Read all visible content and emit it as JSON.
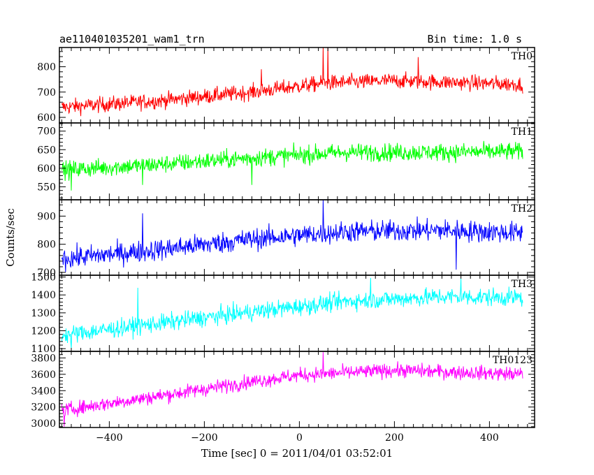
{
  "header": {
    "title": "ae110401035201_wam1_trn",
    "bin_time": "Bin time: 1.0 s"
  },
  "chart_data": {
    "type": "line",
    "title": "ae110401035201_wam1_trn",
    "subtitle": "Bin time: 1.0 s",
    "xlabel": "Time [sec] 0 = 2011/04/01 03:52:01",
    "ylabel": "Counts/sec",
    "xlim": [
      -505,
      495
    ],
    "x_range_data": [
      -500,
      470
    ],
    "x_ticks": [
      -400,
      -200,
      0,
      200,
      400
    ],
    "x_tick_labels": [
      "−400",
      "−200",
      "0",
      "200",
      "400"
    ],
    "grid": false,
    "panels": [
      {
        "name": "TH0",
        "color": "#ff0000",
        "ylim": [
          578,
          876
        ],
        "y_ticks": [
          600,
          700,
          800
        ],
        "trend": [
          [
            -500,
            640
          ],
          [
            -300,
            665
          ],
          [
            -100,
            700
          ],
          [
            50,
            735
          ],
          [
            200,
            745
          ],
          [
            470,
            730
          ]
        ],
        "noise": 28,
        "spikes": [
          [
            -80,
            790
          ],
          [
            50,
            876
          ],
          [
            60,
            878
          ],
          [
            250,
            838
          ]
        ]
      },
      {
        "name": "TH1",
        "color": "#00ff00",
        "ylim": [
          515,
          722
        ],
        "y_ticks": [
          550,
          600,
          650,
          700
        ],
        "trend": [
          [
            -500,
            595
          ],
          [
            -300,
            610
          ],
          [
            -100,
            628
          ],
          [
            100,
            643
          ],
          [
            300,
            643
          ],
          [
            470,
            645
          ]
        ],
        "noise": 22,
        "spikes": [
          [
            -480,
            540
          ],
          [
            -330,
            555
          ],
          [
            -100,
            555
          ]
        ]
      },
      {
        "name": "TH2",
        "color": "#0000ff",
        "ylim": [
          690,
          958
        ],
        "y_ticks": [
          700,
          800,
          900
        ],
        "trend": [
          [
            -500,
            748
          ],
          [
            -300,
            780
          ],
          [
            -100,
            818
          ],
          [
            100,
            845
          ],
          [
            300,
            850
          ],
          [
            470,
            840
          ]
        ],
        "noise": 35,
        "spikes": [
          [
            -330,
            910
          ],
          [
            50,
            958
          ],
          [
            330,
            710
          ]
        ]
      },
      {
        "name": "TH3",
        "color": "#00ffff",
        "ylim": [
          1085,
          1510
        ],
        "y_ticks": [
          1100,
          1200,
          1300,
          1400,
          1500
        ],
        "trend": [
          [
            -500,
            1175
          ],
          [
            -300,
            1240
          ],
          [
            -100,
            1305
          ],
          [
            100,
            1365
          ],
          [
            300,
            1390
          ],
          [
            470,
            1385
          ]
        ],
        "noise": 45,
        "spikes": [
          [
            -340,
            1440
          ],
          [
            -480,
            1100
          ],
          [
            150,
            1495
          ],
          [
            340,
            1490
          ]
        ]
      },
      {
        "name": "TH0123",
        "color": "#ff00ff",
        "ylim": [
          2950,
          3880
        ],
        "y_ticks": [
          3000,
          3200,
          3400,
          3600,
          3800
        ],
        "trend": [
          [
            -500,
            3160
          ],
          [
            -300,
            3330
          ],
          [
            -100,
            3510
          ],
          [
            0,
            3590
          ],
          [
            200,
            3650
          ],
          [
            470,
            3600
          ]
        ],
        "noise": 80,
        "spikes": [
          [
            -495,
            2960
          ],
          [
            50,
            3870
          ]
        ]
      }
    ]
  }
}
